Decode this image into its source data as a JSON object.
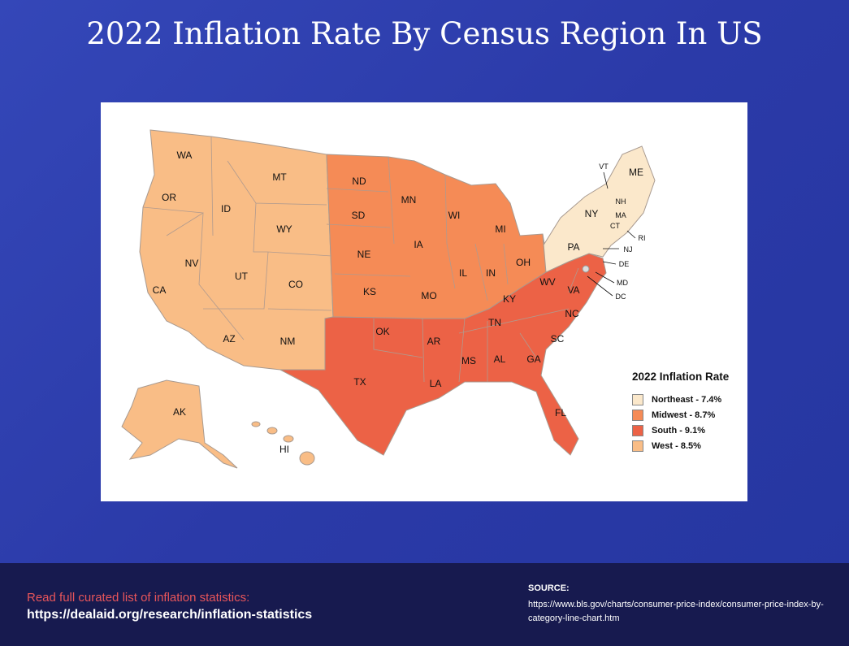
{
  "title": "2022 Inflation Rate By Census Region In US",
  "map": {
    "legend_title": "2022 Inflation Rate",
    "regions": [
      {
        "name": "Northeast",
        "rate_pct": 7.4,
        "label": "Northeast - 7.4%",
        "color": "#fbe8cb"
      },
      {
        "name": "Midwest",
        "rate_pct": 8.7,
        "label": "Midwest - 8.7%",
        "color": "#f58b56"
      },
      {
        "name": "South",
        "rate_pct": 9.1,
        "label": "South - 9.1%",
        "color": "#ec6246"
      },
      {
        "name": "West",
        "rate_pct": 8.5,
        "label": "West - 8.5%",
        "color": "#f9bd86"
      }
    ],
    "states": {
      "WA": "WA",
      "OR": "OR",
      "CA": "CA",
      "ID": "ID",
      "NV": "NV",
      "MT": "MT",
      "WY": "WY",
      "UT": "UT",
      "CO": "CO",
      "AZ": "AZ",
      "NM": "NM",
      "AK": "AK",
      "HI": "HI",
      "ND": "ND",
      "SD": "SD",
      "NE": "NE",
      "KS": "KS",
      "MN": "MN",
      "IA": "IA",
      "MO": "MO",
      "WI": "WI",
      "IL": "IL",
      "MI": "MI",
      "IN": "IN",
      "OH": "OH",
      "OK": "OK",
      "TX": "TX",
      "AR": "AR",
      "LA": "LA",
      "MS": "MS",
      "AL": "AL",
      "TN": "TN",
      "KY": "KY",
      "GA": "GA",
      "FL": "FL",
      "SC": "SC",
      "NC": "NC",
      "VA": "VA",
      "WV": "WV",
      "DE": "DE",
      "MD": "MD",
      "DC": "DC",
      "PA": "PA",
      "NY": "NY",
      "VT": "VT",
      "NH": "NH",
      "ME": "ME",
      "MA": "MA",
      "CT": "CT",
      "RI": "RI",
      "NJ": "NJ"
    }
  },
  "footer": {
    "cta": "Read full curated list of inflation statistics:",
    "cta_link": "https://dealaid.org/research/inflation-statistics",
    "source_heading": "SOURCE:",
    "source_url": "https://www.bls.gov/charts/consumer-price-index/consumer-price-index-by-category-line-chart.htm"
  }
}
